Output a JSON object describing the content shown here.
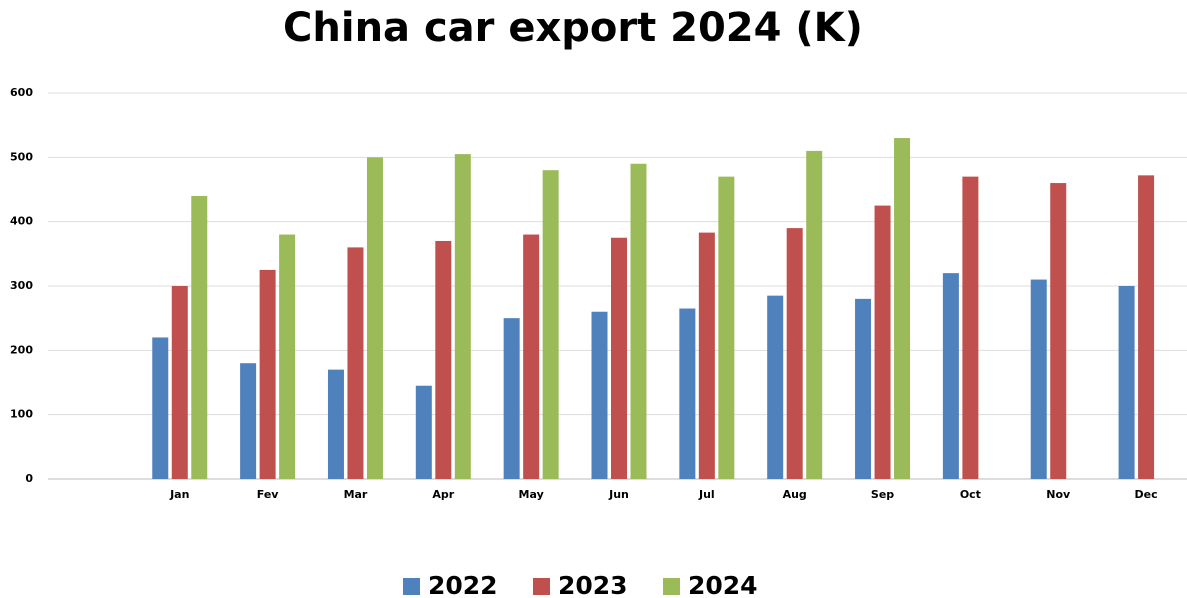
{
  "chart_data": {
    "type": "bar",
    "title": "China car export 2024  (K)",
    "categories": [
      null,
      "Jan",
      "Fev",
      "Mar",
      "Apr",
      "May",
      "Jun",
      "Jul",
      "Aug",
      "Sep",
      "Oct",
      "Nov",
      "Dec"
    ],
    "series": [
      {
        "name": "2022",
        "color": "#4f81bd",
        "values": [
          null,
          220,
          180,
          170,
          145,
          250,
          260,
          265,
          285,
          280,
          320,
          310,
          300
        ]
      },
      {
        "name": "2023",
        "color": "#c0504d",
        "values": [
          null,
          300,
          325,
          360,
          370,
          380,
          375,
          383,
          390,
          425,
          470,
          460,
          472
        ]
      },
      {
        "name": "2024",
        "color": "#9bbb59",
        "values": [
          null,
          440,
          380,
          500,
          505,
          480,
          490,
          470,
          510,
          530,
          null,
          null,
          null
        ]
      }
    ],
    "ylim": [
      0,
      600
    ],
    "yticks": [
      0,
      100,
      200,
      300,
      400,
      500,
      600
    ],
    "grid": true,
    "legend": "bottom"
  }
}
